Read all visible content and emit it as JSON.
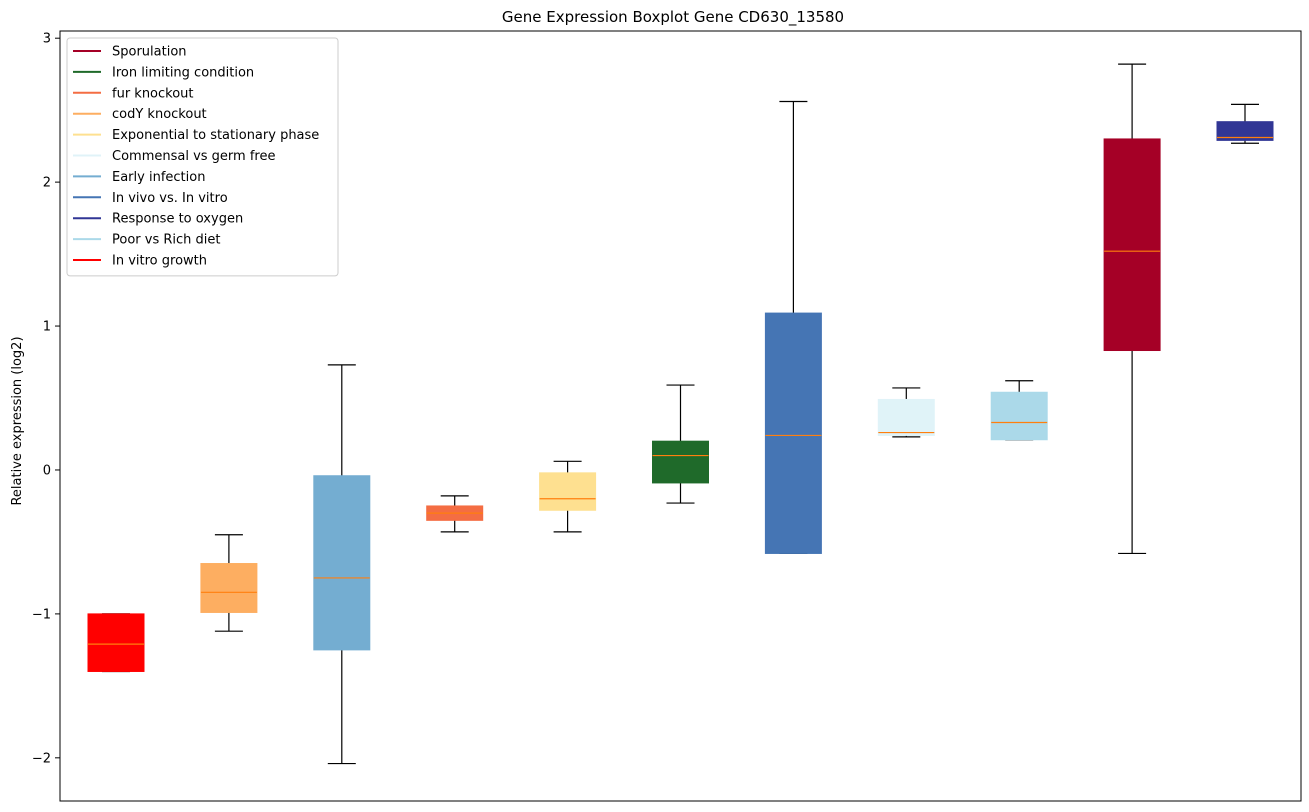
{
  "chart_data": {
    "type": "boxplot",
    "title": "Gene Expression Boxplot Gene CD630_13580",
    "xlabel": "",
    "ylabel": "Relative expression (log2)",
    "ylim": [
      -2.3,
      3.05
    ],
    "yticks": [
      {
        "value": -2,
        "label": "−2"
      },
      {
        "value": -1,
        "label": "−1"
      },
      {
        "value": 0,
        "label": "0"
      },
      {
        "value": 1,
        "label": "1"
      },
      {
        "value": 2,
        "label": "2"
      },
      {
        "value": 3,
        "label": "3"
      }
    ],
    "grid": false,
    "legend_position": "top-left",
    "median_color": "#ff7f0e",
    "whisker_color": "#000000",
    "legend": [
      {
        "name": "Sporulation",
        "color": "#a50026"
      },
      {
        "name": "Iron limiting condition",
        "color": "#1f6a2a"
      },
      {
        "name": "fur knockout",
        "color": "#f46d43"
      },
      {
        "name": "codY knockout",
        "color": "#fdae61"
      },
      {
        "name": "Exponential to stationary phase",
        "color": "#fee090"
      },
      {
        "name": "Commensal vs germ free",
        "color": "#e0f3f8"
      },
      {
        "name": "Early infection",
        "color": "#74add1"
      },
      {
        "name": "In vivo vs. In vitro",
        "color": "#4575b4"
      },
      {
        "name": "Response to oxygen",
        "color": "#313695"
      },
      {
        "name": "Poor vs Rich diet",
        "color": "#abd9e9"
      },
      {
        "name": "In vitro growth",
        "color": "#ff0000"
      }
    ],
    "boxes": [
      {
        "name": "In vitro growth",
        "color": "#ff0000",
        "whislo": -1.4,
        "q1": -1.4,
        "med": -1.21,
        "q3": -1.0,
        "whishi": -1.0
      },
      {
        "name": "codY knockout",
        "color": "#fdae61",
        "whislo": -1.12,
        "q1": -0.99,
        "med": -0.85,
        "q3": -0.65,
        "whishi": -0.45
      },
      {
        "name": "Early infection",
        "color": "#74add1",
        "whislo": -2.04,
        "q1": -1.25,
        "med": -0.75,
        "q3": -0.04,
        "whishi": 0.73
      },
      {
        "name": "fur knockout",
        "color": "#f46d43",
        "whislo": -0.43,
        "q1": -0.35,
        "med": -0.3,
        "q3": -0.25,
        "whishi": -0.18
      },
      {
        "name": "Exponential to stationary phase",
        "color": "#fee090",
        "whislo": -0.43,
        "q1": -0.28,
        "med": -0.2,
        "q3": -0.02,
        "whishi": 0.06
      },
      {
        "name": "Iron limiting condition",
        "color": "#1f6a2a",
        "whislo": -0.23,
        "q1": -0.09,
        "med": 0.1,
        "q3": 0.2,
        "whishi": 0.59
      },
      {
        "name": "In vivo vs. In vitro",
        "color": "#4575b4",
        "whislo": -0.58,
        "q1": -0.58,
        "med": 0.24,
        "q3": 1.09,
        "whishi": 2.56
      },
      {
        "name": "Commensal vs germ free",
        "color": "#e0f3f8",
        "whislo": 0.23,
        "q1": 0.24,
        "med": 0.26,
        "q3": 0.49,
        "whishi": 0.57
      },
      {
        "name": "Poor vs Rich diet",
        "color": "#abd9e9",
        "whislo": 0.21,
        "q1": 0.21,
        "med": 0.33,
        "q3": 0.54,
        "whishi": 0.62
      },
      {
        "name": "Sporulation",
        "color": "#a50026",
        "whislo": -0.58,
        "q1": 0.83,
        "med": 1.52,
        "q3": 2.3,
        "whishi": 2.82
      },
      {
        "name": "Response to oxygen",
        "color": "#313695",
        "whislo": 2.27,
        "q1": 2.29,
        "med": 2.31,
        "q3": 2.42,
        "whishi": 2.54
      }
    ]
  }
}
